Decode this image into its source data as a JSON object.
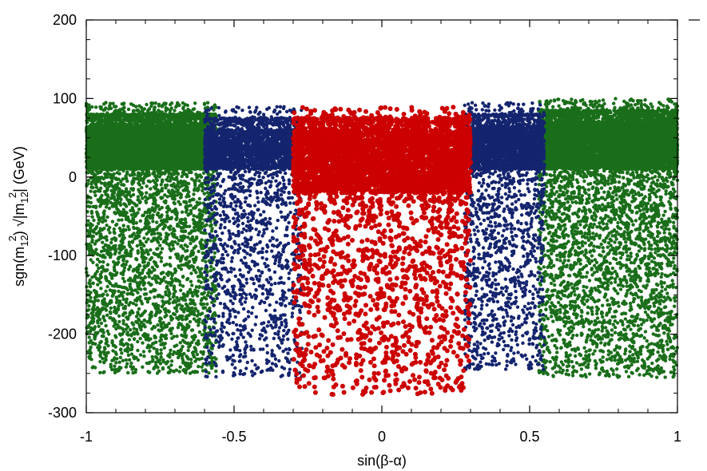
{
  "chart_data": {
    "type": "scatter",
    "title": "",
    "xlabel": "sin(β-α)",
    "ylabel": {
      "prefix": "sgn(m",
      "sub1": "12",
      "sup1": "2",
      "mid": ") √|m",
      "sub2": "12",
      "sup2": "2",
      "suffix": "|  (GeV)"
    },
    "xlim": [
      -1,
      1
    ],
    "ylim": [
      -300,
      200
    ],
    "xticks": [
      -1,
      -0.5,
      0,
      0.5,
      1
    ],
    "xtick_labels": [
      "-1",
      "-0.5",
      "0",
      "0.5",
      "1"
    ],
    "yticks": [
      -300,
      -200,
      -100,
      0,
      100,
      200
    ],
    "ytick_labels": [
      "-300",
      "-200",
      "-100",
      "0",
      "100",
      "200"
    ],
    "grid": false,
    "legend": "none",
    "series": [
      {
        "color": "#1a6e1a",
        "marker_size": 2.2,
        "regions": [
          {
            "x": [
              -1,
              -0.56
            ],
            "y_dense": [
              10,
              65
            ],
            "y_tail_min": -250,
            "density": 9000
          },
          {
            "x": [
              0.53,
              1
            ],
            "y_dense": [
              10,
              70
            ],
            "y_tail_min": -255,
            "density": 9000
          }
        ]
      },
      {
        "color": "#14246e",
        "marker_size": 2.2,
        "regions": [
          {
            "x": [
              -0.6,
              -0.27
            ],
            "y_dense": [
              10,
              60
            ],
            "y_tail_min": -255,
            "density": 3500
          },
          {
            "x": [
              0.28,
              0.55
            ],
            "y_dense": [
              10,
              65
            ],
            "y_tail_min": -245,
            "density": 3500
          }
        ]
      },
      {
        "color": "#cc0000",
        "marker_size": 3.0,
        "regions": [
          {
            "x": [
              -0.3,
              0.3
            ],
            "y_dense": [
              -20,
              60
            ],
            "y_tail_min": -277,
            "density": 5000
          }
        ]
      }
    ]
  }
}
